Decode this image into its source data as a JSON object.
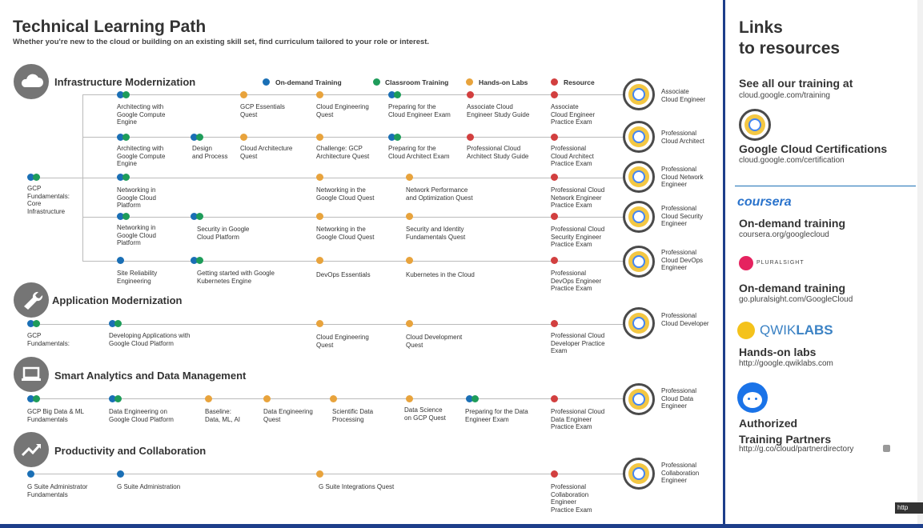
{
  "header": {
    "title": "Technical Learning Path",
    "subtitle": "Whether you're new to the cloud or building on an existing skill set, find curriculum tailored to your role or interest."
  },
  "legend": [
    {
      "label": "On-demand Training",
      "color": "#1a6fb5"
    },
    {
      "label": "Classroom Training",
      "color": "#1e9c5a"
    },
    {
      "label": "Hands-on Labs",
      "color": "#e8a33c"
    },
    {
      "label": "Resource",
      "color": "#d23f3f"
    }
  ],
  "colors": {
    "blue": "#1a6fb5",
    "green": "#1e9c5a",
    "orange": "#e8a33c",
    "red": "#d23f3f",
    "divider": "#1d3e8a"
  },
  "categories": [
    {
      "title": "Infrastructure Modernization",
      "icon": "cloud-icon"
    },
    {
      "title": "Application Modernization",
      "icon": "wrench-icon"
    },
    {
      "title": "Smart Analytics and Data Management",
      "icon": "laptop-icon"
    },
    {
      "title": "Productivity and Collaboration",
      "icon": "trending-up-icon"
    }
  ],
  "nodes": {
    "gcp_fund_core": "GCP\nFundamentals:\nCore\nInfrastructure",
    "r1": [
      "Architecting with\nGoogle Compute\nEngine",
      "GCP Essentials\nQuest",
      "Cloud Engineering\nQuest",
      "Preparing for the\nCloud Engineer Exam",
      "Associate Cloud\nEngineer Study Guide",
      "Associate\nCloud Engineer\nPractice Exam"
    ],
    "r2": [
      "Architecting with\nGoogle Compute\nEngine",
      "Design\nand Process",
      "Cloud Architecture\nQuest",
      "Challenge: GCP\nArchitecture Quest",
      "Preparing for the\nCloud Architect Exam",
      "Professional Cloud\nArchitect Study Guide",
      "Professional\nCloud Architect\nPractice Exam"
    ],
    "r3": [
      "Networking in\nGoogle Cloud\nPlatform",
      "Networking in the\nGoogle Cloud Quest",
      "Network Performance\nand Optimization Quest",
      "Professional Cloud\nNetwork Engineer\nPractice Exam"
    ],
    "r4": [
      "Networking in\nGoogle Cloud\nPlatform",
      "Security in Google\nCloud Platform",
      "Networking in the\nGoogle Cloud Quest",
      "Security and Identity\nFundamentals Quest",
      "Professional Cloud\nSecurity Engineer\nPractice Exam"
    ],
    "r5": [
      "Site Reliability\nEngineering",
      "Getting started with Google\nKubernetes Engine",
      "DevOps Essentials",
      "Kubernetes in the Cloud",
      "Professional\nDevOps Engineer\nPractice Exam"
    ],
    "app": [
      "GCP\nFundamentals:",
      "Developing Applications with\nGoogle Cloud Platform",
      "Cloud Engineering\nQuest",
      "Cloud Development\nQuest",
      "Professional Cloud\nDeveloper Practice\nExam"
    ],
    "data": [
      "GCP Big Data & ML\nFundamentals",
      "Data Engineering on\nGoogle Cloud Platform",
      "Baseline:\nData, ML, AI",
      "Data Engineering\nQuest",
      "Scientific Data\nProcessing",
      "Data Science\non GCP Quest",
      "Preparing for the Data\nEngineer Exam",
      "Professional Cloud\nData Engineer\nPractice Exam"
    ],
    "prod": [
      "G Suite Administrator\nFundamentals",
      "G Suite Administration",
      "G Suite Integrations Quest",
      "Professional\nCollaboration\nEngineer\nPractice Exam"
    ]
  },
  "certifications": [
    "Associate\nCloud Engineer",
    "Professional\nCloud Architect",
    "Professional\nCloud Network\nEngineer",
    "Professional\nCloud Security\nEngineer",
    "Professional\nCloud DevOps\nEngineer",
    "Professional\nCloud Developer",
    "Professional\nCloud Data\nEngineer",
    "Professional\nCollaboration\nEngineer"
  ],
  "sidebar": {
    "title": "Links\nto resources",
    "see_all": "See all our training at",
    "see_all_url": "cloud.google.com/training",
    "cert_title": "Google Cloud Certifications",
    "cert_url": "cloud.google.com/certification",
    "coursera_logo": "coursera",
    "coursera_title": "On-demand training",
    "coursera_url": "coursera.org/googlecloud",
    "pluralsight_logo": "PLURALSIGHT",
    "pluralsight_title": "On-demand training",
    "pluralsight_url": "go.pluralsight.com/GoogleCloud",
    "qwiklabs_logo_a": "QWIK",
    "qwiklabs_logo_b": "LABS",
    "qwiklabs_title": "Hands-on labs",
    "qwiklabs_url": "http://google.qwiklabs.com",
    "partners_title": "Authorized\nTraining Partners",
    "partners_url": "http://g.co/cloud/partnerdirectory",
    "corner": "http"
  }
}
